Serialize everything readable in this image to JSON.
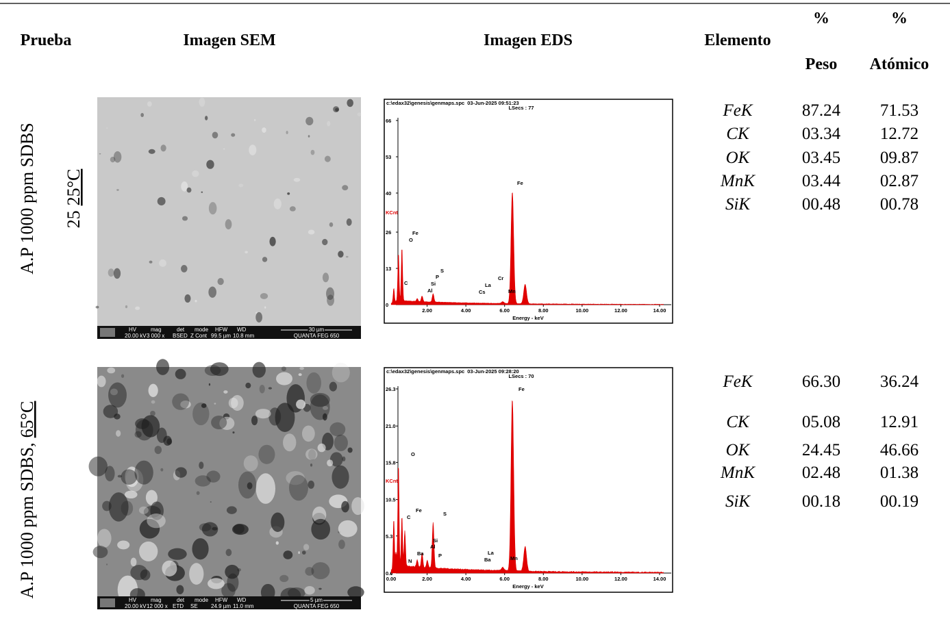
{
  "header": {
    "prueba": "Prueba",
    "imagen_sem": "Imagen SEM",
    "imagen_eds": "Imagen EDS",
    "elemento": "Elemento",
    "peso_symbol": "%",
    "peso": "Peso",
    "atomico_symbol": "%",
    "atomico": "Atómico"
  },
  "rows": [
    {
      "prueba": {
        "line1": "A.P 1000 ppm SDBS",
        "line2": "25",
        "line2_underlined": "25°C"
      },
      "sem": {
        "labels": [
          "HV",
          "mag",
          "det",
          "mode",
          "HFW",
          "WD"
        ],
        "values": [
          "20.00 kV",
          "3 000 x",
          "BSED",
          "Z Cont",
          "99.5 µm",
          "10.8 mm"
        ],
        "scale": "30 µm",
        "brand": "QUANTA FEG 650"
      },
      "eds": {
        "file": "c:\\edax32\\genesis\\genmaps.spc",
        "datetime": "03-Jun-2025 09:51:23",
        "lsecs": "LSecs : 77",
        "y_label": "KCnt",
        "x_label": "Energy - keV",
        "yticks": [
          "66",
          "53",
          "40",
          "26",
          "13",
          "0"
        ],
        "xticks": [
          "2.00",
          "4.00",
          "6.00",
          "8.00",
          "10.00",
          "12.00",
          "14.00"
        ],
        "peak_labels": [
          "Fe",
          "O",
          "C",
          "Si",
          "Al",
          "P",
          "S",
          "La",
          "Cs",
          "Cr",
          "Mn",
          "Fe"
        ]
      },
      "elements": [
        {
          "element": "FeK",
          "peso": "87.24",
          "atomico": "71.53"
        },
        {
          "element": "CK",
          "peso": "03.34",
          "atomico": "12.72"
        },
        {
          "element": "OK",
          "peso": "03.45",
          "atomico": "09.87"
        },
        {
          "element": "MnK",
          "peso": "03.44",
          "atomico": "02.87"
        },
        {
          "element": "SiK",
          "peso": "00.48",
          "atomico": "00.78"
        }
      ]
    },
    {
      "prueba": {
        "line1": "A.P 1000 ppm SDBS,",
        "line1_underlined": "65°C"
      },
      "sem": {
        "labels": [
          "HV",
          "mag",
          "det",
          "mode",
          "HFW",
          "WD"
        ],
        "values": [
          "20.00 kV",
          "12 000 x",
          "ETD",
          "SE",
          "24.9 µm",
          "11.0 mm"
        ],
        "scale": "5 µm",
        "brand": "QUANTA FEG 650"
      },
      "eds": {
        "file": "c:\\edax32\\genesis\\genmaps.spc",
        "datetime": "03-Jun-2025 09:28:20",
        "lsecs": "LSecs : 70",
        "y_label": "KCnt",
        "x_label": "Energy - keV",
        "yticks": [
          "26.3",
          "21.0",
          "15.8",
          "10.5",
          "5.3",
          "0.0"
        ],
        "xticks": [
          "0.00",
          "2.00",
          "4.00",
          "6.00",
          "8.00",
          "10.00",
          "12.00",
          "14.00"
        ],
        "peak_labels": [
          "O",
          "Fe",
          "C",
          "S",
          "Si",
          "Al",
          "P",
          "Ba",
          "N",
          "La",
          "Ba",
          "Mn",
          "Fe"
        ]
      },
      "elements": [
        {
          "element": "FeK",
          "peso": "66.30",
          "atomico": "36.24"
        },
        {
          "element": "CK",
          "peso": "05.08",
          "atomico": "12.91"
        },
        {
          "element": "OK",
          "peso": "24.45",
          "atomico": "46.66"
        },
        {
          "element": "MnK",
          "peso": "02.48",
          "atomico": "01.38"
        },
        {
          "element": "SiK",
          "peso": "00.18",
          "atomico": "00.19"
        }
      ]
    }
  ]
}
